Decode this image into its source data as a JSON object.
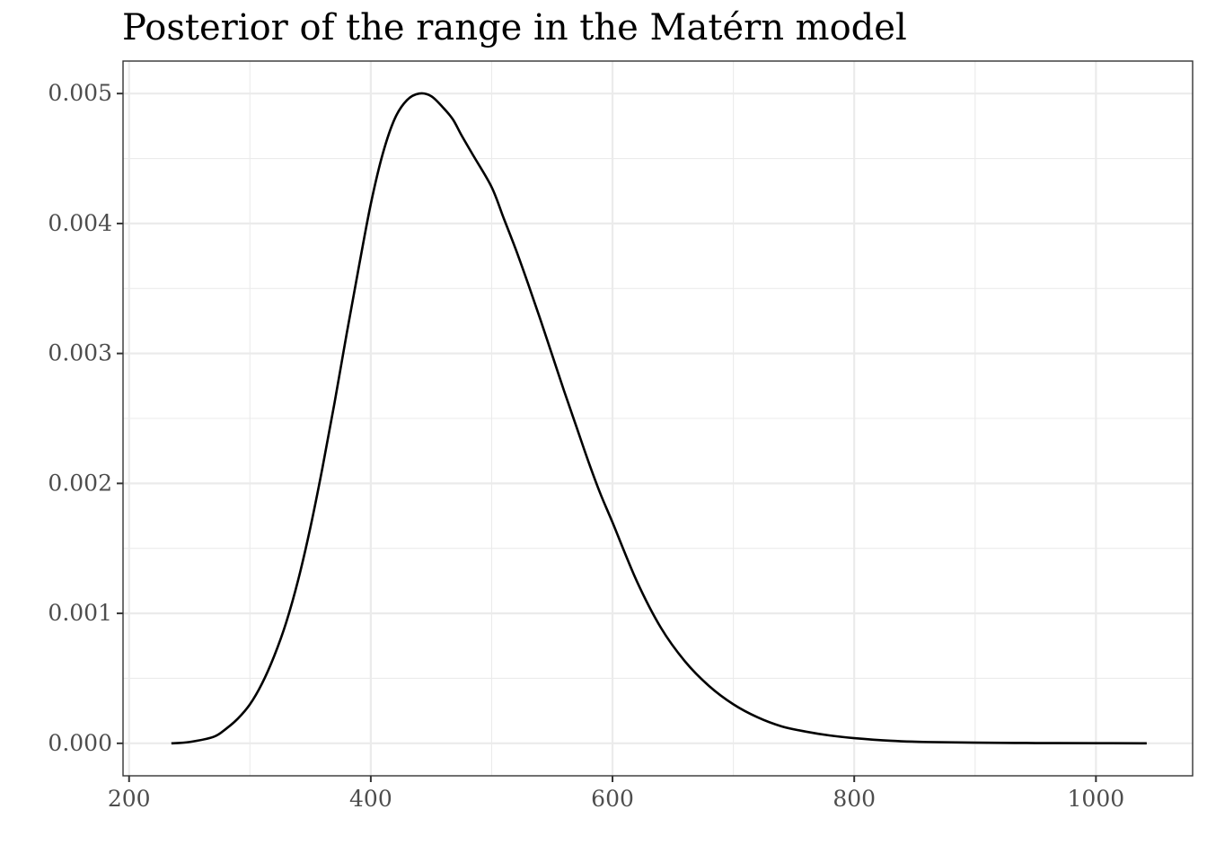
{
  "chart_data": {
    "type": "line",
    "title": "Posterior of the range in the Matérn model",
    "xlabel": "",
    "ylabel": "",
    "xlim": [
      195,
      1080
    ],
    "ylim": [
      -0.00025,
      0.00525
    ],
    "x_ticks": [
      200,
      400,
      600,
      800,
      1000
    ],
    "x_tick_labels": [
      "200",
      "400",
      "600",
      "800",
      "1000"
    ],
    "x_minor_ticks": [
      300,
      500,
      700,
      900
    ],
    "y_ticks": [
      0,
      0.001,
      0.002,
      0.003,
      0.004,
      0.005
    ],
    "y_tick_labels": [
      "0.000",
      "0.001",
      "0.002",
      "0.003",
      "0.004",
      "0.005"
    ],
    "y_minor_ticks": [
      0.0005,
      0.0015,
      0.0025,
      0.0035,
      0.0045
    ],
    "grid": true,
    "series": [
      {
        "x": [
          235,
          250,
          270,
          280,
          290,
          300,
          310,
          320,
          330,
          340,
          350,
          360,
          370,
          380,
          390,
          400,
          410,
          420,
          430,
          440,
          450,
          460,
          468,
          475,
          485,
          500,
          510,
          520,
          530,
          540,
          550,
          560,
          570,
          580,
          590,
          600,
          620,
          640,
          660,
          680,
          700,
          720,
          740,
          760,
          780,
          800,
          830,
          860,
          900,
          950,
          1000,
          1042
        ],
        "y": [
          0.0,
          1e-05,
          5e-05,
          0.00011,
          0.00019,
          0.0003,
          0.00046,
          0.00067,
          0.00093,
          0.00126,
          0.00166,
          0.00212,
          0.00262,
          0.00315,
          0.00366,
          0.00415,
          0.00454,
          0.00481,
          0.00495,
          0.005,
          0.00498,
          0.00489,
          0.0048,
          0.00468,
          0.00452,
          0.00428,
          0.00404,
          0.0038,
          0.00354,
          0.00327,
          0.00299,
          0.00271,
          0.00244,
          0.00217,
          0.00192,
          0.0017,
          0.00125,
          0.00089,
          0.00063,
          0.00044,
          0.0003,
          0.0002,
          0.00013,
          9e-05,
          6e-05,
          4e-05,
          2e-05,
          1e-05,
          5e-06,
          2e-06,
          1e-06,
          0.0
        ]
      }
    ]
  }
}
